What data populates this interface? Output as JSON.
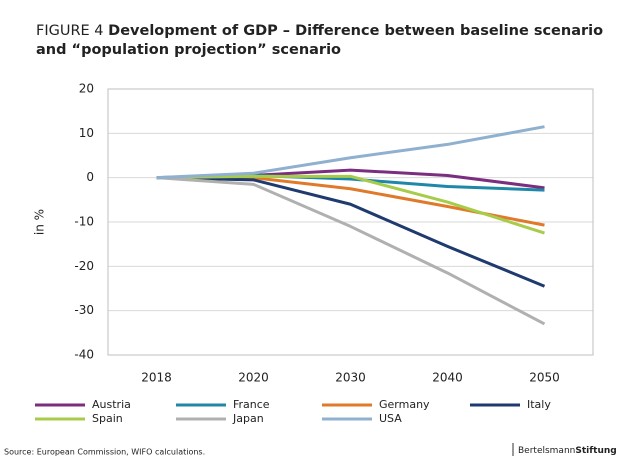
{
  "chart_data": {
    "type": "line",
    "figure_label": "FIGURE 4",
    "title": "Development of GDP – Difference between baseline scenario and “population projection” scenario",
    "ylabel": "in %",
    "categories": [
      "2018",
      "2020",
      "2030",
      "2040",
      "2050"
    ],
    "series": [
      {
        "name": "Austria",
        "color": "#7b2d7f",
        "values": [
          0,
          0.5,
          1.7,
          0.5,
          -2.3
        ]
      },
      {
        "name": "France",
        "color": "#1f87a8",
        "values": [
          0,
          0.5,
          -0.3,
          -2,
          -2.8
        ]
      },
      {
        "name": "Germany",
        "color": "#e07a2a",
        "values": [
          0,
          0,
          -2.5,
          -6.5,
          -10.7
        ]
      },
      {
        "name": "Italy",
        "color": "#1f3a6e",
        "values": [
          0,
          -0.5,
          -6,
          -15.5,
          -24.5
        ]
      },
      {
        "name": "Spain",
        "color": "#a8cc4a",
        "values": [
          0,
          0.3,
          0.3,
          -5.5,
          -12.5
        ]
      },
      {
        "name": "Japan",
        "color": "#b0b0b0",
        "values": [
          0,
          -1.5,
          -11,
          -21.5,
          -33
        ]
      },
      {
        "name": "USA",
        "color": "#8fb0cf",
        "values": [
          0,
          1,
          4.5,
          7.5,
          11.5
        ]
      }
    ],
    "ylim": [
      -40,
      20
    ],
    "yticks": [
      -40,
      -30,
      -20,
      -10,
      0,
      10,
      20
    ],
    "grid": true,
    "source": "Source: European Commission, WIFO calculations.",
    "logo": [
      "Bertelsmann",
      "Stiftung"
    ]
  }
}
